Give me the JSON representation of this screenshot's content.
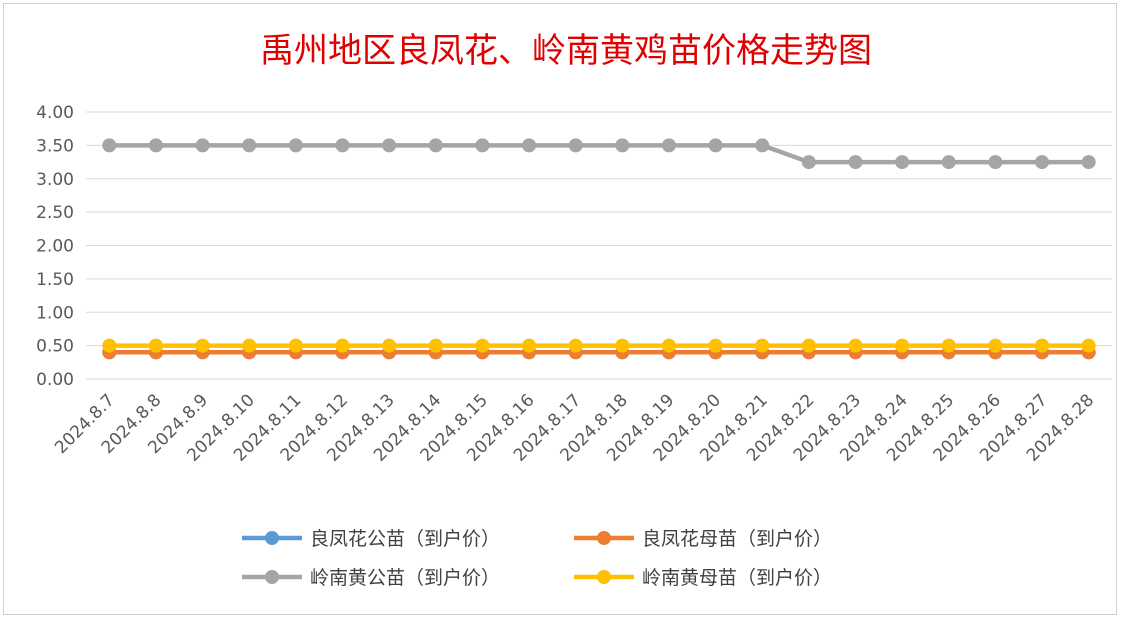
{
  "chart_data": {
    "type": "line",
    "title": "禹州地区良凤花、岭南黄鸡苗价格走势图",
    "categories": [
      "2024.8.7",
      "2024.8.8",
      "2024.8.9",
      "2024.8.10",
      "2024.8.11",
      "2024.8.12",
      "2024.8.13",
      "2024.8.14",
      "2024.8.15",
      "2024.8.16",
      "2024.8.17",
      "2024.8.18",
      "2024.8.19",
      "2024.8.20",
      "2024.8.21",
      "2024.8.22",
      "2024.8.23",
      "2024.8.24",
      "2024.8.25",
      "2024.8.26",
      "2024.8.27",
      "2024.8.28"
    ],
    "y_ticks": [
      "0.00",
      "0.50",
      "1.00",
      "1.50",
      "2.00",
      "2.50",
      "3.00",
      "3.50",
      "4.00"
    ],
    "ylim": [
      0,
      4
    ],
    "grid": true,
    "legend_position": "bottom",
    "series": [
      {
        "name": "良凤花公苗（到户价）",
        "color": "#5b9bd5",
        "values": [
          0.4,
          0.4,
          0.4,
          0.4,
          0.4,
          0.4,
          0.4,
          0.4,
          0.4,
          0.4,
          0.4,
          0.4,
          0.4,
          0.4,
          0.4,
          0.4,
          0.4,
          0.4,
          0.4,
          0.4,
          0.4,
          0.4
        ]
      },
      {
        "name": "良凤花母苗（到户价）",
        "color": "#ed7d31",
        "values": [
          0.4,
          0.4,
          0.4,
          0.4,
          0.4,
          0.4,
          0.4,
          0.4,
          0.4,
          0.4,
          0.4,
          0.4,
          0.4,
          0.4,
          0.4,
          0.4,
          0.4,
          0.4,
          0.4,
          0.4,
          0.4,
          0.4
        ]
      },
      {
        "name": "岭南黄公苗（到户价）",
        "color": "#a5a5a5",
        "values": [
          3.5,
          3.5,
          3.5,
          3.5,
          3.5,
          3.5,
          3.5,
          3.5,
          3.5,
          3.5,
          3.5,
          3.5,
          3.5,
          3.5,
          3.5,
          3.25,
          3.25,
          3.25,
          3.25,
          3.25,
          3.25,
          3.25
        ]
      },
      {
        "name": "岭南黄母苗（到户价）",
        "color": "#ffc000",
        "values": [
          0.5,
          0.5,
          0.5,
          0.5,
          0.5,
          0.5,
          0.5,
          0.5,
          0.5,
          0.5,
          0.5,
          0.5,
          0.5,
          0.5,
          0.5,
          0.5,
          0.5,
          0.5,
          0.5,
          0.5,
          0.5,
          0.5
        ]
      }
    ]
  }
}
